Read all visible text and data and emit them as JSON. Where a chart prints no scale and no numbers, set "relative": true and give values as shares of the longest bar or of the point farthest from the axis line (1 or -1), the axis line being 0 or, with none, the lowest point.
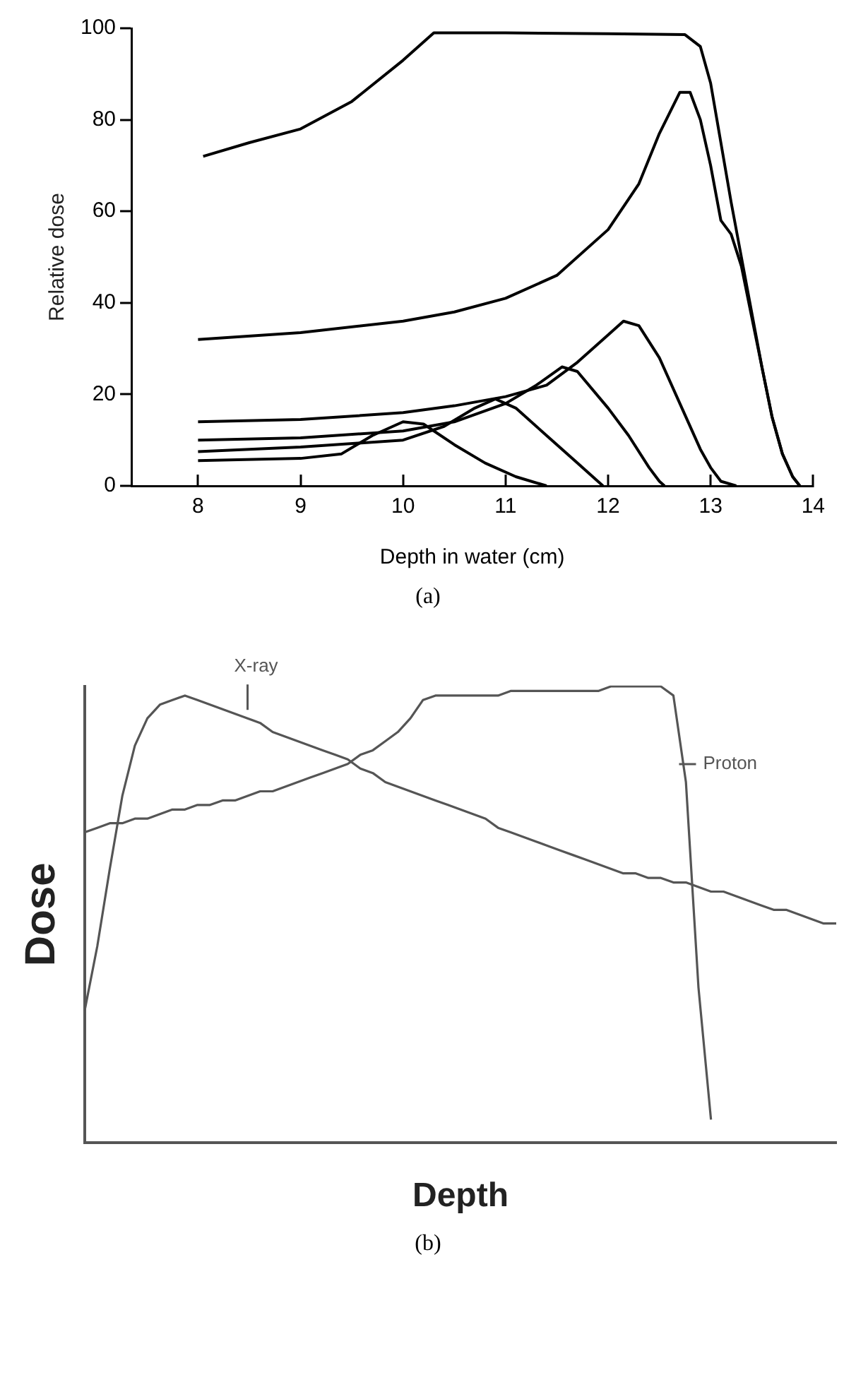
{
  "chart_data": [
    {
      "type": "line",
      "xlabel": "Depth in water (cm)",
      "ylabel": "Relative dose",
      "xlim": [
        7.35,
        14
      ],
      "xticks": [
        8,
        9,
        10,
        11,
        12,
        13,
        14
      ],
      "ylim": [
        0,
        100
      ],
      "yticks": [
        0,
        20,
        40,
        60,
        80,
        100
      ],
      "marker": "none",
      "annotations": [
        "(a)"
      ],
      "series": [
        {
          "color": "#000000",
          "x": [
            8.05,
            8.5,
            9,
            9.5,
            10,
            10.3,
            11,
            12,
            12.75,
            12.9,
            13,
            13.1,
            13.2,
            13.3,
            13.4,
            13.5,
            13.6,
            13.7,
            13.8,
            13.87
          ],
          "values": [
            72,
            75,
            78,
            84,
            93,
            99,
            99,
            98.8,
            98.6,
            96,
            88,
            75,
            62,
            50,
            38,
            26,
            15,
            7,
            2,
            0
          ]
        },
        {
          "color": "#000000",
          "x": [
            8,
            9,
            10,
            10.5,
            11,
            11.5,
            12,
            12.3,
            12.5,
            12.7,
            12.8,
            12.9,
            13,
            13.1,
            13.2,
            13.3,
            13.4,
            13.5,
            13.6,
            13.7,
            13.8,
            13.87
          ],
          "values": [
            32,
            33.5,
            36,
            38,
            41,
            46,
            56,
            66,
            77,
            86,
            86,
            80,
            70,
            58,
            55,
            48,
            37,
            26,
            15,
            7,
            2,
            0
          ]
        },
        {
          "color": "#000000",
          "x": [
            8,
            9,
            10,
            10.5,
            11,
            11.4,
            11.7,
            12,
            12.15,
            12.3,
            12.5,
            12.7,
            12.9,
            13,
            13.1,
            13.25
          ],
          "values": [
            14,
            14.5,
            16,
            17.5,
            19.5,
            22,
            27,
            33,
            36,
            35,
            28,
            18,
            8,
            4,
            1,
            0
          ]
        },
        {
          "color": "#000000",
          "x": [
            8,
            9,
            10,
            10.5,
            11,
            11.3,
            11.55,
            11.7,
            12,
            12.2,
            12.4,
            12.5,
            12.55
          ],
          "values": [
            10,
            10.5,
            12,
            14,
            18,
            22,
            26,
            25,
            17,
            11,
            4,
            1,
            0
          ]
        },
        {
          "color": "#000000",
          "x": [
            8,
            9,
            10,
            10.4,
            10.7,
            10.9,
            11.1,
            11.4,
            11.7,
            11.9,
            11.95
          ],
          "values": [
            7.5,
            8.5,
            10,
            13,
            17,
            19,
            17,
            11,
            5,
            1,
            0
          ]
        },
        {
          "color": "#000000",
          "x": [
            8,
            9,
            9.4,
            9.7,
            10,
            10.2,
            10.5,
            10.8,
            11.1,
            11.4
          ],
          "values": [
            5.5,
            6,
            7,
            11,
            14,
            13.5,
            9,
            5,
            2,
            0
          ]
        }
      ]
    },
    {
      "type": "line",
      "relative": true,
      "xlabel": "Depth",
      "ylabel": "Dose",
      "marker": "none",
      "annotations": [
        "(b)"
      ],
      "categories": [
        null,
        null,
        null,
        null,
        null,
        null,
        null,
        null,
        null,
        null,
        null,
        null,
        null,
        null,
        null,
        null,
        null,
        null,
        null,
        null,
        null,
        null,
        null,
        null,
        null,
        null,
        null,
        null,
        null,
        null,
        null,
        null,
        null,
        null,
        null,
        null,
        null,
        null,
        null,
        null,
        null,
        null,
        null,
        null,
        null,
        null,
        null,
        null,
        null,
        null,
        null,
        null,
        null,
        null,
        null,
        null,
        null,
        null,
        null,
        null,
        null
      ],
      "series": [
        {
          "name": "X-ray",
          "color": "#555555",
          "values": [
            0.29,
            0.43,
            0.6,
            0.76,
            0.87,
            0.93,
            0.96,
            0.97,
            0.98,
            0.97,
            0.96,
            0.95,
            0.94,
            0.93,
            0.92,
            0.9,
            0.89,
            0.88,
            0.87,
            0.86,
            0.85,
            0.84,
            0.82,
            0.81,
            0.79,
            0.78,
            0.77,
            0.76,
            0.75,
            0.74,
            0.73,
            0.72,
            0.71,
            0.69,
            0.68,
            0.67,
            0.66,
            0.65,
            0.64,
            0.63,
            0.62,
            0.61,
            0.6,
            0.59,
            0.59,
            0.58,
            0.58,
            0.57,
            0.57,
            0.56,
            0.55,
            0.55,
            0.54,
            0.53,
            0.52,
            0.51,
            0.51,
            0.5,
            0.49,
            0.48,
            0.48
          ]
        },
        {
          "name": "Proton",
          "color": "#555555",
          "values": [
            0.68,
            0.69,
            0.7,
            0.7,
            0.71,
            0.71,
            0.72,
            0.73,
            0.73,
            0.74,
            0.74,
            0.75,
            0.75,
            0.76,
            0.77,
            0.77,
            0.78,
            0.79,
            0.8,
            0.81,
            0.82,
            0.83,
            0.85,
            0.86,
            0.88,
            0.9,
            0.93,
            0.97,
            0.98,
            0.98,
            0.98,
            0.98,
            0.98,
            0.98,
            0.99,
            0.99,
            0.99,
            0.99,
            0.99,
            0.99,
            0.99,
            0.99,
            1.0,
            1.0,
            1.0,
            1.0,
            1.0,
            0.98,
            0.79,
            0.34,
            0.05,
            null,
            null,
            null,
            null,
            null,
            null,
            null,
            null,
            null,
            null
          ]
        }
      ]
    }
  ]
}
